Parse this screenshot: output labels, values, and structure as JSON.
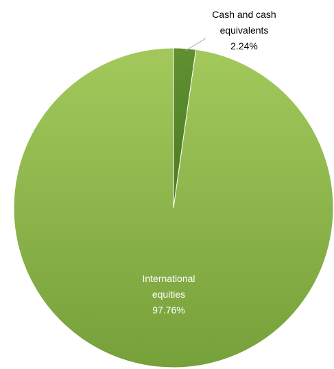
{
  "chart_data": {
    "type": "pie",
    "title": "",
    "slices": [
      {
        "label_lines": [
          "Cash and cash",
          "equivalents"
        ],
        "value": 2.24,
        "value_label": "2.24%",
        "color": "#5a8a2b",
        "label_color": "#000000"
      },
      {
        "label_lines": [
          "International",
          "equities"
        ],
        "value": 97.76,
        "value_label": "97.76%",
        "color": "#8ab347",
        "label_color": "#ffffff"
      }
    ],
    "start_angle_deg": 0,
    "direction": "clockwise",
    "leader_line_color": "#a6a6a6"
  }
}
